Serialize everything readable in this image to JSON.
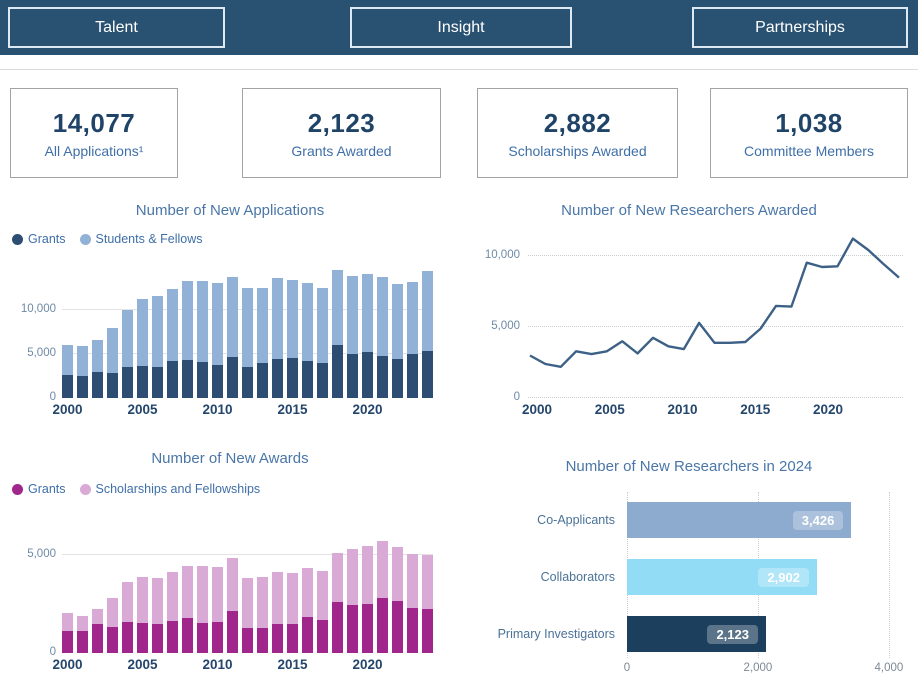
{
  "nav": {
    "tabs": [
      {
        "label": "Talent"
      },
      {
        "label": "Insight"
      },
      {
        "label": "Partnerships"
      }
    ]
  },
  "stats": [
    {
      "value": "14,077",
      "label": "All Applications¹"
    },
    {
      "value": "2,123",
      "label": "Grants Awarded"
    },
    {
      "value": "2,882",
      "label": "Scholarships Awarded"
    },
    {
      "value": "1,038",
      "label": "Committee Members"
    }
  ],
  "colors": {
    "topbar_bg": "#295272",
    "nav_border": "#dfe9f2",
    "stat_value": "#1f4468",
    "stat_label": "#3f6fa8",
    "chart_title": "#4a76a8",
    "axis_tick": "#6e8aa6",
    "axis_year": "#24466b"
  },
  "chart_data": [
    {
      "type": "bar",
      "stacked": true,
      "title": "Number of New Applications",
      "x": [
        2000,
        2001,
        2002,
        2003,
        2004,
        2005,
        2006,
        2007,
        2008,
        2009,
        2010,
        2011,
        2012,
        2013,
        2014,
        2015,
        2016,
        2017,
        2018,
        2019,
        2020,
        2021,
        2022,
        2023,
        2024
      ],
      "series": [
        {
          "name": "Grants",
          "color": "#2e4d72",
          "values": [
            2600,
            2550,
            2900,
            2850,
            3500,
            3600,
            3550,
            4150,
            4300,
            4100,
            3800,
            4650,
            3500,
            4000,
            4450,
            4550,
            4250,
            4000,
            6000,
            5000,
            5200,
            4800,
            4400,
            5000,
            5300
          ]
        },
        {
          "name": "Students & Fellows",
          "color": "#92b1d6",
          "values": [
            3400,
            3350,
            3700,
            5050,
            6500,
            7600,
            8050,
            8250,
            9000,
            9200,
            9300,
            9050,
            9000,
            8500,
            9150,
            8850,
            8850,
            8500,
            8600,
            8900,
            8900,
            8900,
            8600,
            8200,
            9100
          ]
        }
      ],
      "ylim": [
        0,
        15000
      ],
      "yticks": [
        0,
        5000,
        10000
      ],
      "ytick_labels": [
        "0",
        "5,000",
        "10,000"
      ],
      "xticks": [
        2000,
        2005,
        2010,
        2015,
        2020
      ],
      "legend_position": "top-left",
      "grid": "horizontal-solid"
    },
    {
      "type": "line",
      "title": "Number of New Researchers Awarded",
      "x": [
        2000,
        2001,
        2002,
        2003,
        2004,
        2005,
        2006,
        2007,
        2008,
        2009,
        2010,
        2011,
        2012,
        2013,
        2014,
        2015,
        2016,
        2017,
        2018,
        2019,
        2020,
        2021,
        2022,
        2023,
        2024
      ],
      "series": [
        {
          "name": "New Researchers Awarded",
          "color": "#3d6186",
          "values": [
            3000,
            2400,
            2200,
            3300,
            3100,
            3300,
            4000,
            3150,
            4250,
            3650,
            3450,
            5300,
            3900,
            3900,
            3950,
            4900,
            6500,
            6450,
            9550,
            9250,
            9300,
            11250,
            10450,
            9450,
            8500
          ]
        }
      ],
      "ylim": [
        0,
        12000
      ],
      "yticks": [
        0,
        5000,
        10000
      ],
      "ytick_labels": [
        "0",
        "5,000",
        "10,000"
      ],
      "xticks": [
        2000,
        2005,
        2010,
        2015,
        2020
      ],
      "grid": "horizontal-dotted"
    },
    {
      "type": "bar",
      "stacked": true,
      "title": "Number of New Awards",
      "x": [
        2000,
        2001,
        2002,
        2003,
        2004,
        2005,
        2006,
        2007,
        2008,
        2009,
        2010,
        2011,
        2012,
        2013,
        2014,
        2015,
        2016,
        2017,
        2018,
        2019,
        2020,
        2021,
        2022,
        2023,
        2024
      ],
      "series": [
        {
          "name": "Grants",
          "color": "#a1268b",
          "values": [
            1100,
            1100,
            1500,
            1300,
            1600,
            1550,
            1500,
            1650,
            1800,
            1550,
            1600,
            2150,
            1250,
            1250,
            1500,
            1450,
            1850,
            1700,
            2600,
            2450,
            2500,
            2800,
            2650,
            2300,
            2250
          ]
        },
        {
          "name": "Scholarships and Fellowships",
          "color": "#d9aad6",
          "values": [
            950,
            800,
            750,
            1500,
            2000,
            2300,
            2300,
            2450,
            2650,
            2900,
            2750,
            2700,
            2550,
            2600,
            2600,
            2600,
            2450,
            2450,
            2500,
            2850,
            2950,
            2900,
            2750,
            2750,
            2750
          ]
        }
      ],
      "ylim": [
        0,
        6000
      ],
      "yticks": [
        0,
        5000
      ],
      "ytick_labels": [
        "0",
        "5,000"
      ],
      "xticks": [
        2000,
        2005,
        2010,
        2015,
        2020
      ],
      "legend_position": "top-left",
      "grid": "horizontal-solid"
    },
    {
      "type": "hbar",
      "title": "Number of New Researchers in 2024",
      "categories": [
        "Co-Applicants",
        "Collaborators",
        "Primary Investigators"
      ],
      "values": [
        3426,
        2902,
        2123
      ],
      "value_labels": [
        "3,426",
        "2,902",
        "2,123"
      ],
      "bar_colors": [
        "#8dabcf",
        "#93dcf6",
        "#1d3f5e"
      ],
      "xlim": [
        0,
        4200
      ],
      "xticks": [
        0,
        2000,
        4000
      ],
      "xtick_labels": [
        "0",
        "2,000",
        "4,000"
      ],
      "grid": "vertical-dotted"
    }
  ]
}
